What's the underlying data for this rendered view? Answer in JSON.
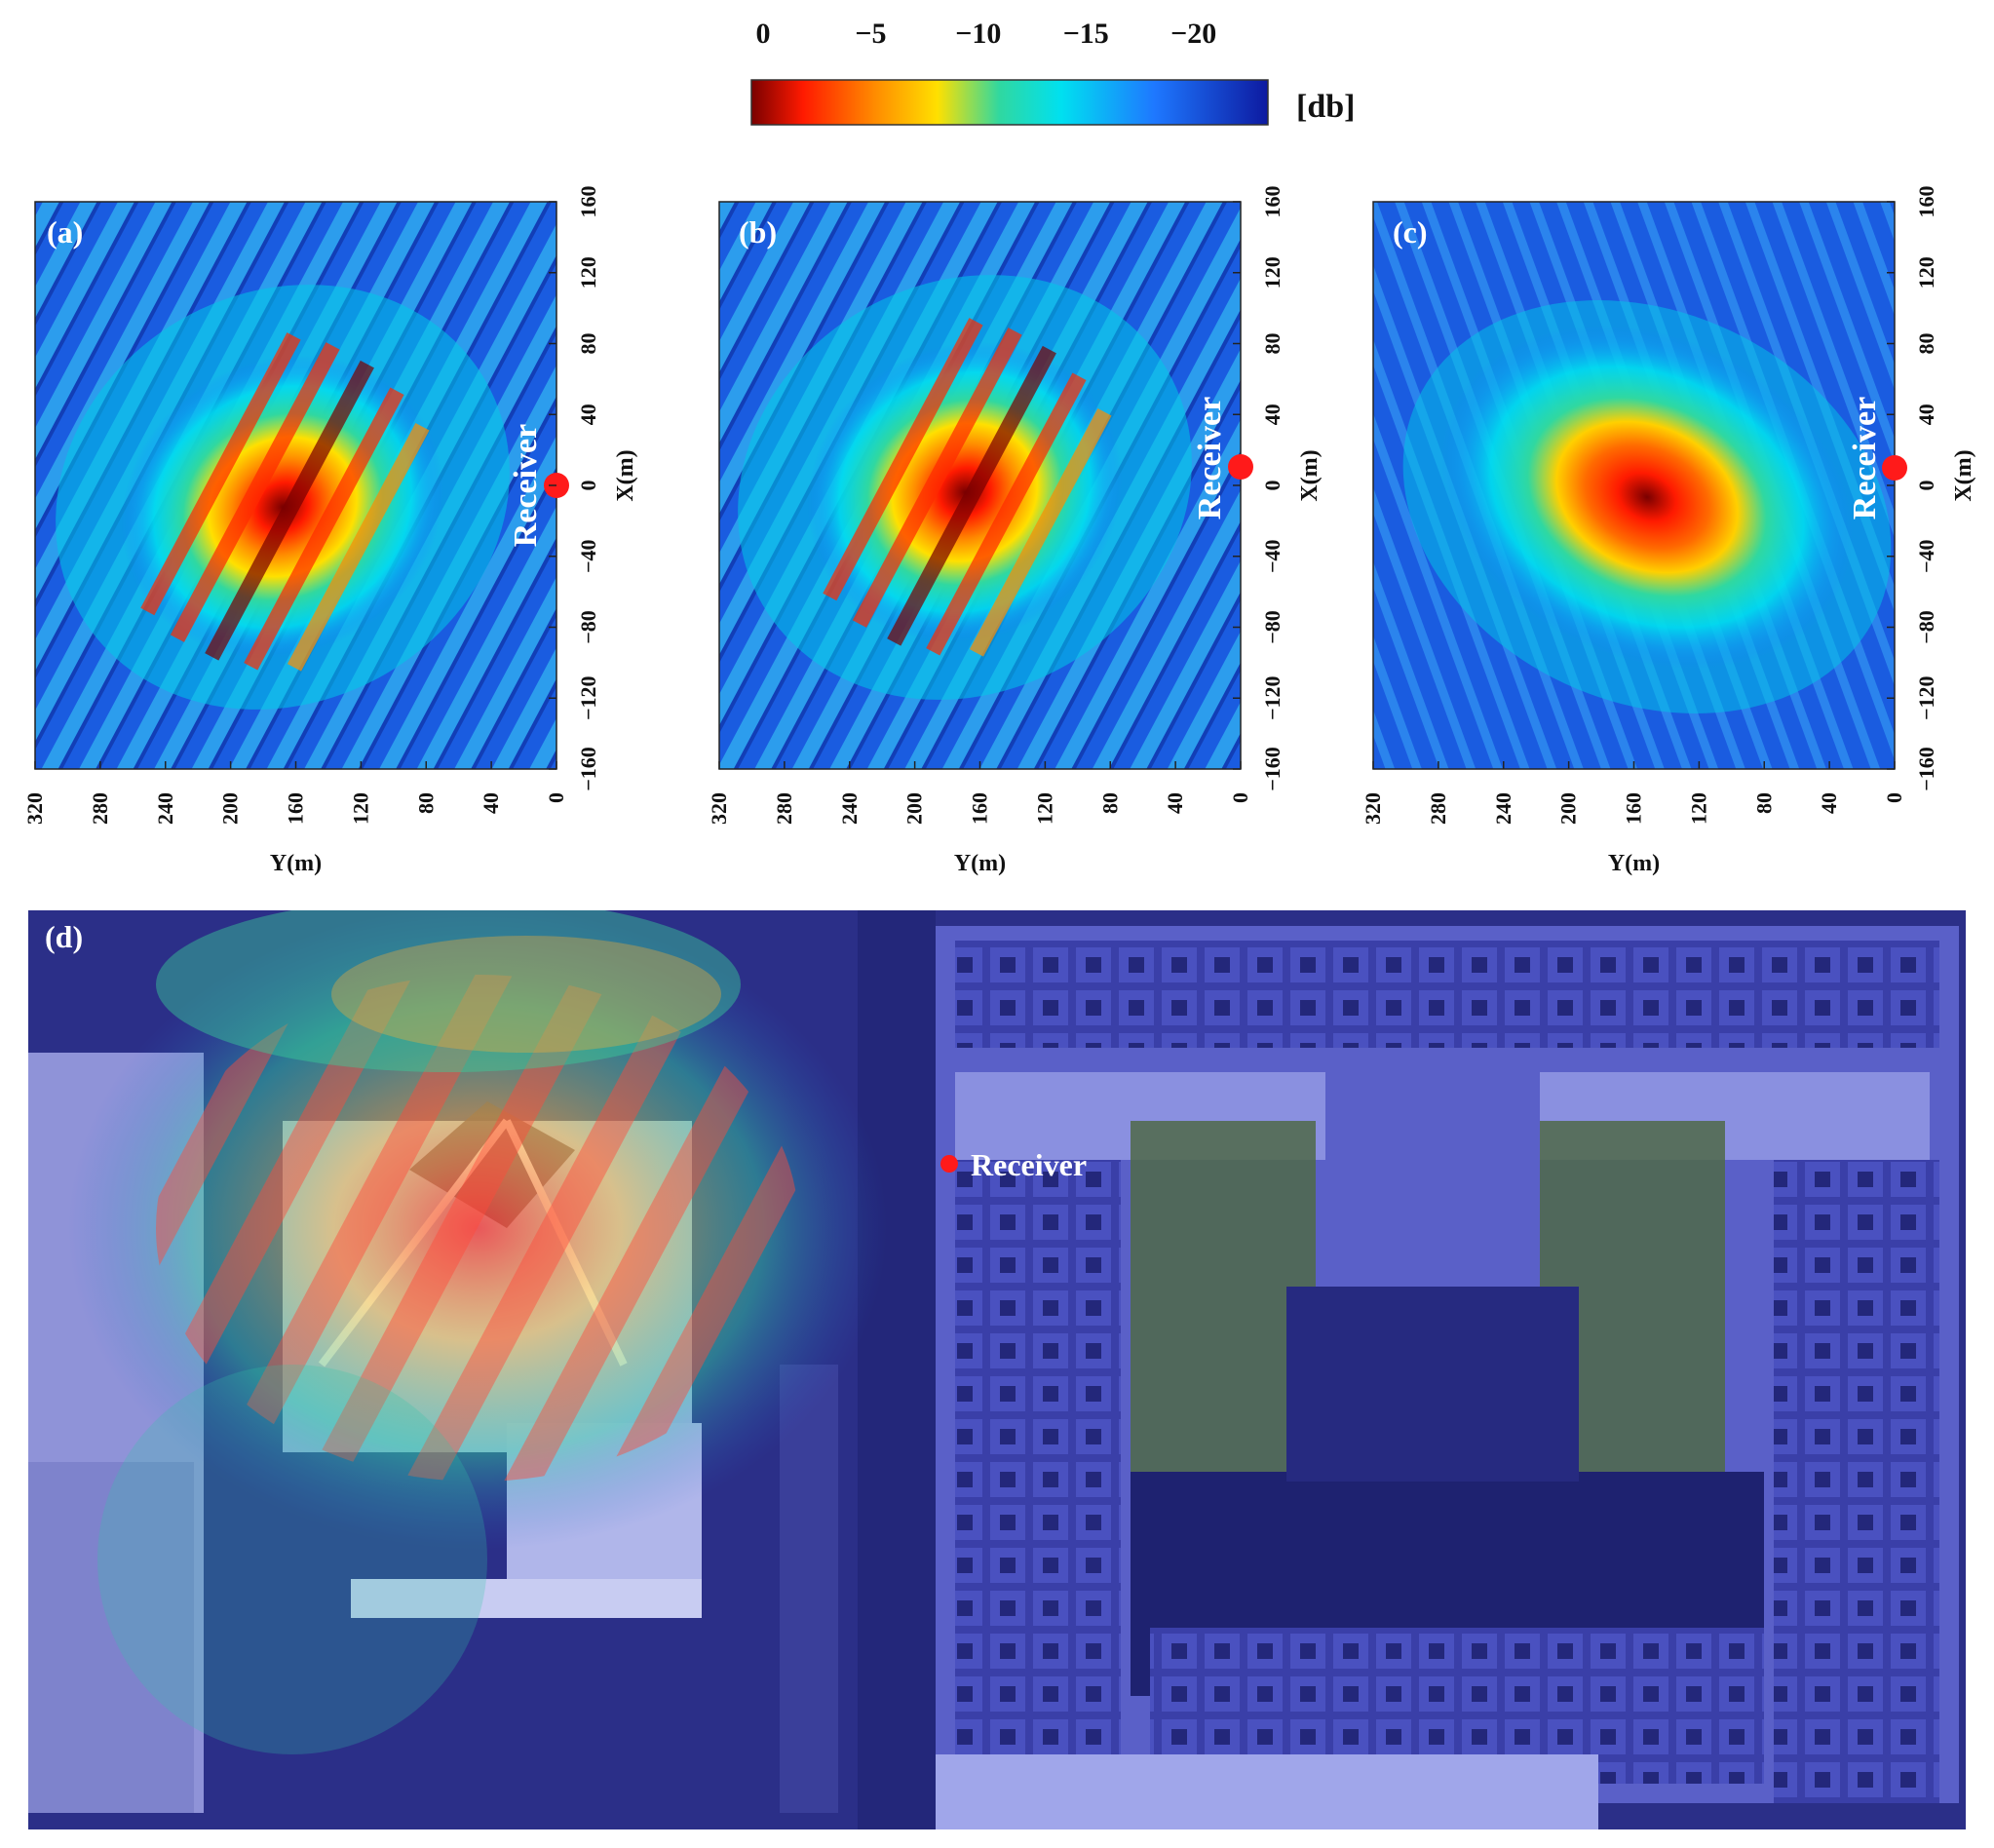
{
  "colorbar": {
    "ticks": [
      "0",
      "−5",
      "−10",
      "−15",
      "−20"
    ],
    "tick_values": [
      0,
      -5,
      -10,
      -15,
      -20
    ],
    "range": [
      0,
      -24
    ],
    "unit": "[db]",
    "colormap": [
      "#7a0000",
      "#ff1a00",
      "#ff8c00",
      "#ffe000",
      "#30d8a0",
      "#00e0f0",
      "#1e78ff",
      "#0d1aa0"
    ]
  },
  "chart_data": [
    {
      "type": "heatmap",
      "panel": "(a)",
      "xlabel": "Y(m)",
      "ylabel": "X(m)",
      "x_ticks": [
        320,
        280,
        240,
        200,
        160,
        120,
        80,
        40,
        0
      ],
      "y_ticks": [
        160,
        120,
        80,
        40,
        0,
        -40,
        -80,
        -120,
        -160
      ],
      "xlim": [
        320,
        0
      ],
      "ylim": [
        -160,
        160
      ],
      "receiver": {
        "label": "Receiver",
        "y_m": 0,
        "x_m": 0
      },
      "peak_region": {
        "y_center_m": 150,
        "x_center_m": -20,
        "peak_db": 0
      },
      "pattern": "oblique sidelobe stripes"
    },
    {
      "type": "heatmap",
      "panel": "(b)",
      "xlabel": "Y(m)",
      "ylabel": "X(m)",
      "x_ticks": [
        320,
        280,
        240,
        200,
        160,
        120,
        80,
        40,
        0
      ],
      "y_ticks": [
        160,
        120,
        80,
        40,
        0,
        -40,
        -80,
        -120,
        -160
      ],
      "xlim": [
        320,
        0
      ],
      "ylim": [
        -160,
        160
      ],
      "receiver": {
        "label": "Receiver",
        "y_m": 0,
        "x_m": 8
      },
      "peak_region": {
        "y_center_m": 150,
        "x_center_m": -20,
        "peak_db": 0
      },
      "pattern": "oblique sidelobe stripes"
    },
    {
      "type": "heatmap",
      "panel": "(c)",
      "xlabel": "Y(m)",
      "ylabel": "X(m)",
      "x_ticks": [
        320,
        280,
        240,
        200,
        160,
        120,
        80,
        40,
        0
      ],
      "y_ticks": [
        160,
        120,
        80,
        40,
        0,
        -40,
        -80,
        -120,
        -160
      ],
      "xlim": [
        320,
        0
      ],
      "ylim": [
        -160,
        160
      ],
      "receiver": {
        "label": "Receiver",
        "y_m": 0,
        "x_m": 8
      },
      "peak_region": {
        "y_center_m": 150,
        "x_center_m": -10,
        "peak_db": 0
      },
      "pattern": "smooth elliptical spot"
    }
  ],
  "overlay_panel": {
    "label": "(d)",
    "receiver_label": "Receiver",
    "background": "satellite image with heatmap overlay"
  }
}
